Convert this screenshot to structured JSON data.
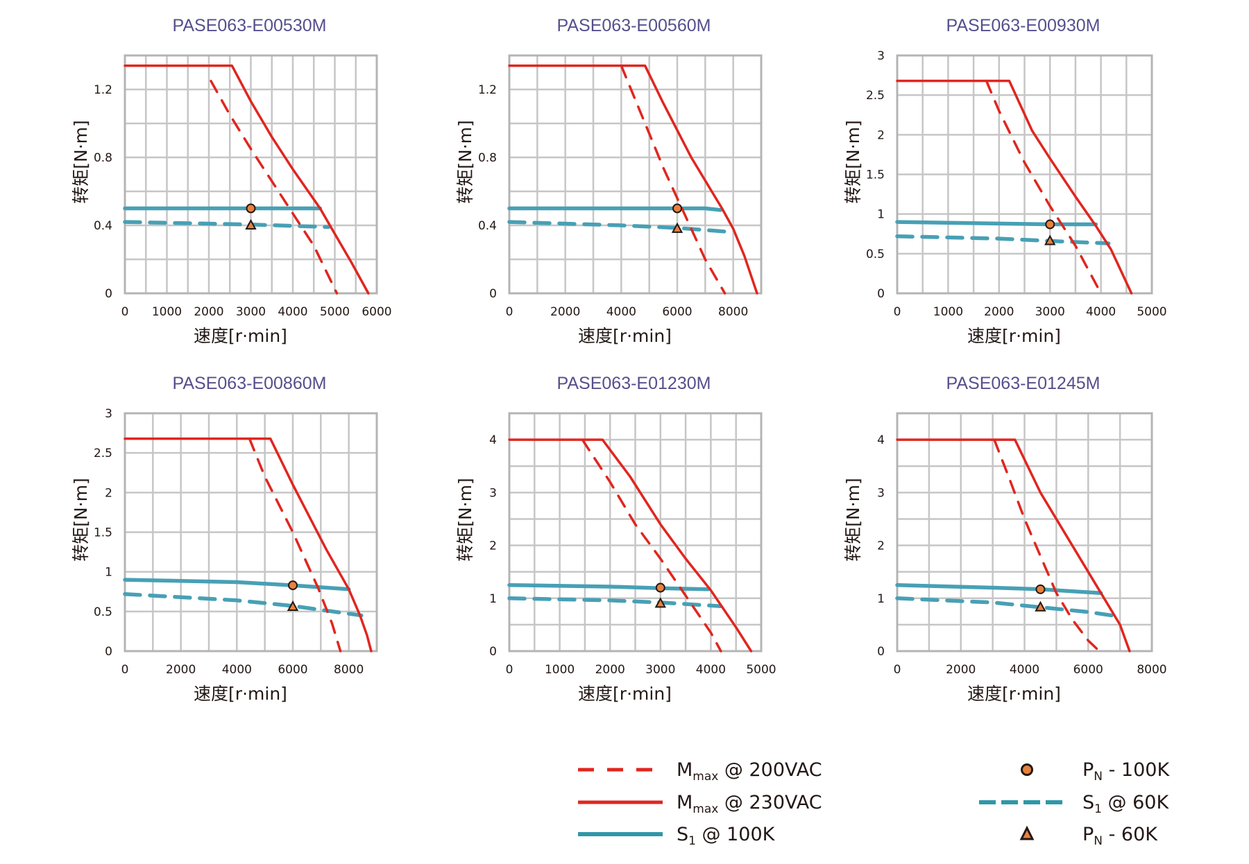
{
  "colors": {
    "red": "#e0261f",
    "teal": "#47a0b5",
    "teal_legend": "#2f97a8",
    "marker_fill": "#e8823c",
    "marker_stroke": "#231815",
    "grid": "#c6c6c6",
    "title": "#554f8c"
  },
  "legend": {
    "items": [
      {
        "key": "mmax200",
        "main": "M",
        "sub": "max",
        "rest": " @ 200VAC",
        "style": "red-dashed"
      },
      {
        "key": "mmax230",
        "main": "M",
        "sub": "max",
        "rest": " @ 230VAC",
        "style": "red-solid"
      },
      {
        "key": "s1_100",
        "main": "S",
        "sub": "1",
        "rest": " @ 100K",
        "style": "teal-solid"
      },
      {
        "key": "pn100",
        "main": "P",
        "sub": "N",
        "rest": " - 100K",
        "style": "circle-marker"
      },
      {
        "key": "s1_60",
        "main": "S",
        "sub": "1",
        "rest": " @ 60K",
        "style": "teal-dashed"
      },
      {
        "key": "pn60",
        "main": "P",
        "sub": "N",
        "rest": " - 60K",
        "style": "triangle-marker"
      }
    ]
  },
  "chart_data": [
    {
      "type": "line",
      "title": "PASE063-E00530M",
      "xlabel": "速度[r·min]",
      "ylabel": "转矩[N·m]",
      "xlim": [
        0,
        6000
      ],
      "ylim": [
        0,
        1.4
      ],
      "x_grid_step": 500,
      "y_grid_step": 0.2,
      "xticks": [
        0,
        1000,
        2000,
        3000,
        4000,
        5000,
        6000
      ],
      "yticks": [
        0,
        0.4,
        0.8,
        1.2
      ],
      "ytick_labels": [
        "0",
        "0.4",
        "0.8",
        "1.2"
      ],
      "grid": true,
      "series": [
        {
          "name": "Mmax @ 230VAC",
          "style": "red-solid",
          "points": [
            [
              0,
              1.34
            ],
            [
              2550,
              1.34
            ],
            [
              3000,
              1.13
            ],
            [
              3500,
              0.92
            ],
            [
              4000,
              0.73
            ],
            [
              4650,
              0.5
            ],
            [
              5000,
              0.35
            ],
            [
              5400,
              0.18
            ],
            [
              5800,
              0
            ]
          ]
        },
        {
          "name": "Mmax @ 200VAC",
          "style": "red-dashed",
          "points": [
            [
              2050,
              1.25
            ],
            [
              2500,
              1.05
            ],
            [
              3000,
              0.85
            ],
            [
              3500,
              0.66
            ],
            [
              4000,
              0.47
            ],
            [
              4500,
              0.28
            ],
            [
              5050,
              0
            ]
          ]
        },
        {
          "name": "S1 @ 100K",
          "style": "teal-solid",
          "points": [
            [
              0,
              0.5
            ],
            [
              4650,
              0.5
            ]
          ]
        },
        {
          "name": "S1 @ 60K",
          "style": "teal-dashed",
          "points": [
            [
              0,
              0.42
            ],
            [
              3000,
              0.405
            ],
            [
              4850,
              0.39
            ]
          ]
        }
      ],
      "markers": [
        {
          "name": "PN - 100K",
          "shape": "circle",
          "x": 3000,
          "y": 0.5
        },
        {
          "name": "PN - 60K",
          "shape": "triangle",
          "x": 3000,
          "y": 0.4
        }
      ]
    },
    {
      "type": "line",
      "title": "PASE063-E00560M",
      "xlabel": "速度[r·min]",
      "ylabel": "转矩[N·m]",
      "xlim": [
        0,
        9000
      ],
      "ylim": [
        0,
        1.4
      ],
      "x_grid_step": 1000,
      "y_grid_step": 0.2,
      "xticks": [
        0,
        2000,
        4000,
        6000,
        8000
      ],
      "yticks": [
        0,
        0.4,
        0.8,
        1.2
      ],
      "ytick_labels": [
        "0",
        "0.4",
        "0.8",
        "1.2"
      ],
      "grid": true,
      "series": [
        {
          "name": "Mmax @ 230VAC",
          "style": "red-solid",
          "points": [
            [
              0,
              1.34
            ],
            [
              4850,
              1.34
            ],
            [
              5500,
              1.12
            ],
            [
              6000,
              0.96
            ],
            [
              6500,
              0.8
            ],
            [
              7600,
              0.5
            ],
            [
              8000,
              0.38
            ],
            [
              8400,
              0.22
            ],
            [
              8850,
              0
            ]
          ]
        },
        {
          "name": "Mmax @ 200VAC",
          "style": "red-dashed",
          "points": [
            [
              4000,
              1.34
            ],
            [
              4500,
              1.14
            ],
            [
              5000,
              0.94
            ],
            [
              5500,
              0.74
            ],
            [
              6000,
              0.56
            ],
            [
              6500,
              0.38
            ],
            [
              7000,
              0.2
            ],
            [
              7700,
              0
            ]
          ]
        },
        {
          "name": "S1 @ 100K",
          "style": "teal-solid",
          "points": [
            [
              0,
              0.5
            ],
            [
              7000,
              0.5
            ],
            [
              7550,
              0.49
            ]
          ]
        },
        {
          "name": "S1 @ 60K",
          "style": "teal-dashed",
          "points": [
            [
              0,
              0.42
            ],
            [
              4000,
              0.4
            ],
            [
              6000,
              0.385
            ],
            [
              8000,
              0.36
            ]
          ]
        }
      ],
      "markers": [
        {
          "name": "PN - 100K",
          "shape": "circle",
          "x": 6000,
          "y": 0.5
        },
        {
          "name": "PN - 60K",
          "shape": "triangle",
          "x": 6000,
          "y": 0.38
        }
      ]
    },
    {
      "type": "line",
      "title": "PASE063-E00930M",
      "xlabel": "速度[r·min]",
      "ylabel": "转矩[N·m]",
      "xlim": [
        0,
        5000
      ],
      "ylim": [
        0,
        3
      ],
      "x_grid_step": 500,
      "y_grid_step": 0.5,
      "xticks": [
        0,
        1000,
        2000,
        3000,
        4000,
        5000
      ],
      "yticks": [
        0,
        0.5,
        1,
        1.5,
        2,
        2.5,
        3
      ],
      "ytick_labels": [
        "0",
        "0.5",
        "1",
        "1.5",
        "2",
        "2.5",
        "3"
      ],
      "grid": true,
      "series": [
        {
          "name": "Mmax @ 230VAC",
          "style": "red-solid",
          "points": [
            [
              0,
              2.68
            ],
            [
              2200,
              2.68
            ],
            [
              2650,
              2.05
            ],
            [
              3000,
              1.7
            ],
            [
              3500,
              1.22
            ],
            [
              3900,
              0.85
            ],
            [
              4200,
              0.55
            ],
            [
              4600,
              0
            ]
          ]
        },
        {
          "name": "Mmax @ 200VAC",
          "style": "red-dashed",
          "points": [
            [
              1750,
              2.68
            ],
            [
              2000,
              2.3
            ],
            [
              2500,
              1.65
            ],
            [
              3000,
              1.1
            ],
            [
              3500,
              0.6
            ],
            [
              4000,
              0
            ]
          ]
        },
        {
          "name": "S1 @ 100K",
          "style": "teal-solid",
          "points": [
            [
              0,
              0.9
            ],
            [
              3000,
              0.87
            ],
            [
              3900,
              0.87
            ]
          ]
        },
        {
          "name": "S1 @ 60K",
          "style": "teal-dashed",
          "points": [
            [
              0,
              0.72
            ],
            [
              2000,
              0.69
            ],
            [
              3000,
              0.66
            ],
            [
              4150,
              0.63
            ]
          ]
        }
      ],
      "markers": [
        {
          "name": "PN - 100K",
          "shape": "circle",
          "x": 3000,
          "y": 0.87
        },
        {
          "name": "PN - 60K",
          "shape": "triangle",
          "x": 3000,
          "y": 0.66
        }
      ]
    },
    {
      "type": "line",
      "title": "PASE063-E00860M",
      "xlabel": "速度[r·min]",
      "ylabel": "转矩[N·m]",
      "xlim": [
        0,
        9000
      ],
      "ylim": [
        0,
        3
      ],
      "x_grid_step": 1000,
      "y_grid_step": 0.5,
      "xticks": [
        0,
        2000,
        4000,
        6000,
        8000
      ],
      "yticks": [
        0,
        0.5,
        1,
        1.5,
        2,
        2.5,
        3
      ],
      "ytick_labels": [
        "0",
        "0.5",
        "1",
        "1.5",
        "2",
        "2.5",
        "3"
      ],
      "grid": true,
      "series": [
        {
          "name": "Mmax @ 230VAC",
          "style": "red-solid",
          "points": [
            [
              0,
              2.68
            ],
            [
              5200,
              2.68
            ],
            [
              6000,
              2.1
            ],
            [
              7200,
              1.28
            ],
            [
              8000,
              0.78
            ],
            [
              8400,
              0.45
            ],
            [
              8650,
              0.2
            ],
            [
              8800,
              0
            ]
          ]
        },
        {
          "name": "Mmax @ 200VAC",
          "style": "red-dashed",
          "points": [
            [
              4450,
              2.68
            ],
            [
              5000,
              2.2
            ],
            [
              6000,
              1.5
            ],
            [
              6900,
              0.8
            ],
            [
              7400,
              0.35
            ],
            [
              7700,
              0
            ]
          ]
        },
        {
          "name": "S1 @ 100K",
          "style": "teal-solid",
          "points": [
            [
              0,
              0.9
            ],
            [
              4000,
              0.87
            ],
            [
              6000,
              0.83
            ],
            [
              8000,
              0.78
            ]
          ]
        },
        {
          "name": "S1 @ 60K",
          "style": "teal-dashed",
          "points": [
            [
              0,
              0.72
            ],
            [
              4000,
              0.64
            ],
            [
              6000,
              0.57
            ],
            [
              7000,
              0.52
            ],
            [
              8450,
              0.45
            ]
          ]
        }
      ],
      "markers": [
        {
          "name": "PN - 100K",
          "shape": "circle",
          "x": 6000,
          "y": 0.83
        },
        {
          "name": "PN - 60K",
          "shape": "triangle",
          "x": 6000,
          "y": 0.56
        }
      ]
    },
    {
      "type": "line",
      "title": "PASE063-E01230M",
      "xlabel": "速度[r·min]",
      "ylabel": "转矩[N·m]",
      "xlim": [
        0,
        5000
      ],
      "ylim": [
        0,
        4.5
      ],
      "x_grid_step": 500,
      "y_grid_step": 0.5,
      "xticks": [
        0,
        1000,
        2000,
        3000,
        4000,
        5000
      ],
      "yticks": [
        0,
        1,
        2,
        3,
        4
      ],
      "ytick_labels": [
        "0",
        "1",
        "2",
        "3",
        "4"
      ],
      "grid": true,
      "series": [
        {
          "name": "Mmax @ 230VAC",
          "style": "red-solid",
          "points": [
            [
              0,
              4.0
            ],
            [
              1850,
              4.0
            ],
            [
              2400,
              3.3
            ],
            [
              3000,
              2.4
            ],
            [
              3500,
              1.75
            ],
            [
              4000,
              1.15
            ],
            [
              4500,
              0.45
            ],
            [
              4800,
              0
            ]
          ]
        },
        {
          "name": "Mmax @ 200VAC",
          "style": "red-dashed",
          "points": [
            [
              1450,
              4.0
            ],
            [
              2000,
              3.2
            ],
            [
              2500,
              2.4
            ],
            [
              3000,
              1.75
            ],
            [
              3500,
              1.05
            ],
            [
              4000,
              0.35
            ],
            [
              4200,
              0
            ]
          ]
        },
        {
          "name": "S1 @ 100K",
          "style": "teal-solid",
          "points": [
            [
              0,
              1.25
            ],
            [
              2000,
              1.22
            ],
            [
              3000,
              1.19
            ],
            [
              3950,
              1.17
            ]
          ]
        },
        {
          "name": "S1 @ 60K",
          "style": "teal-dashed",
          "points": [
            [
              0,
              1.0
            ],
            [
              2000,
              0.96
            ],
            [
              3000,
              0.92
            ],
            [
              4200,
              0.85
            ]
          ]
        }
      ],
      "markers": [
        {
          "name": "PN - 100K",
          "shape": "circle",
          "x": 3000,
          "y": 1.2
        },
        {
          "name": "PN - 60K",
          "shape": "triangle",
          "x": 3000,
          "y": 0.9
        }
      ]
    },
    {
      "type": "line",
      "title": "PASE063-E01245M",
      "xlabel": "速度[r·min]",
      "ylabel": "转矩[N·m]",
      "xlim": [
        0,
        8000
      ],
      "ylim": [
        0,
        4.5
      ],
      "x_grid_step": 1000,
      "y_grid_step": 0.5,
      "xticks": [
        0,
        2000,
        4000,
        6000,
        8000
      ],
      "yticks": [
        0,
        1,
        2,
        3,
        4
      ],
      "ytick_labels": [
        "0",
        "1",
        "2",
        "3",
        "4"
      ],
      "grid": true,
      "series": [
        {
          "name": "Mmax @ 230VAC",
          "style": "red-solid",
          "points": [
            [
              0,
              4.0
            ],
            [
              3700,
              4.0
            ],
            [
              4500,
              3.0
            ],
            [
              5300,
              2.2
            ],
            [
              6400,
              1.1
            ],
            [
              7000,
              0.5
            ],
            [
              7300,
              0
            ]
          ]
        },
        {
          "name": "Mmax @ 200VAC",
          "style": "red-dashed",
          "points": [
            [
              3050,
              4.0
            ],
            [
              3500,
              3.3
            ],
            [
              4000,
              2.5
            ],
            [
              4500,
              1.8
            ],
            [
              5000,
              1.1
            ],
            [
              5500,
              0.6
            ],
            [
              6000,
              0.2
            ],
            [
              6350,
              0
            ]
          ]
        },
        {
          "name": "S1 @ 100K",
          "style": "teal-solid",
          "points": [
            [
              0,
              1.25
            ],
            [
              3000,
              1.2
            ],
            [
              4500,
              1.17
            ],
            [
              6400,
              1.1
            ]
          ]
        },
        {
          "name": "S1 @ 60K",
          "style": "teal-dashed",
          "points": [
            [
              0,
              1.0
            ],
            [
              3000,
              0.92
            ],
            [
              4500,
              0.83
            ],
            [
              6000,
              0.74
            ],
            [
              6800,
              0.67
            ]
          ]
        }
      ],
      "markers": [
        {
          "name": "PN - 100K",
          "shape": "circle",
          "x": 4500,
          "y": 1.17
        },
        {
          "name": "PN - 60K",
          "shape": "triangle",
          "x": 4500,
          "y": 0.83
        }
      ]
    }
  ]
}
